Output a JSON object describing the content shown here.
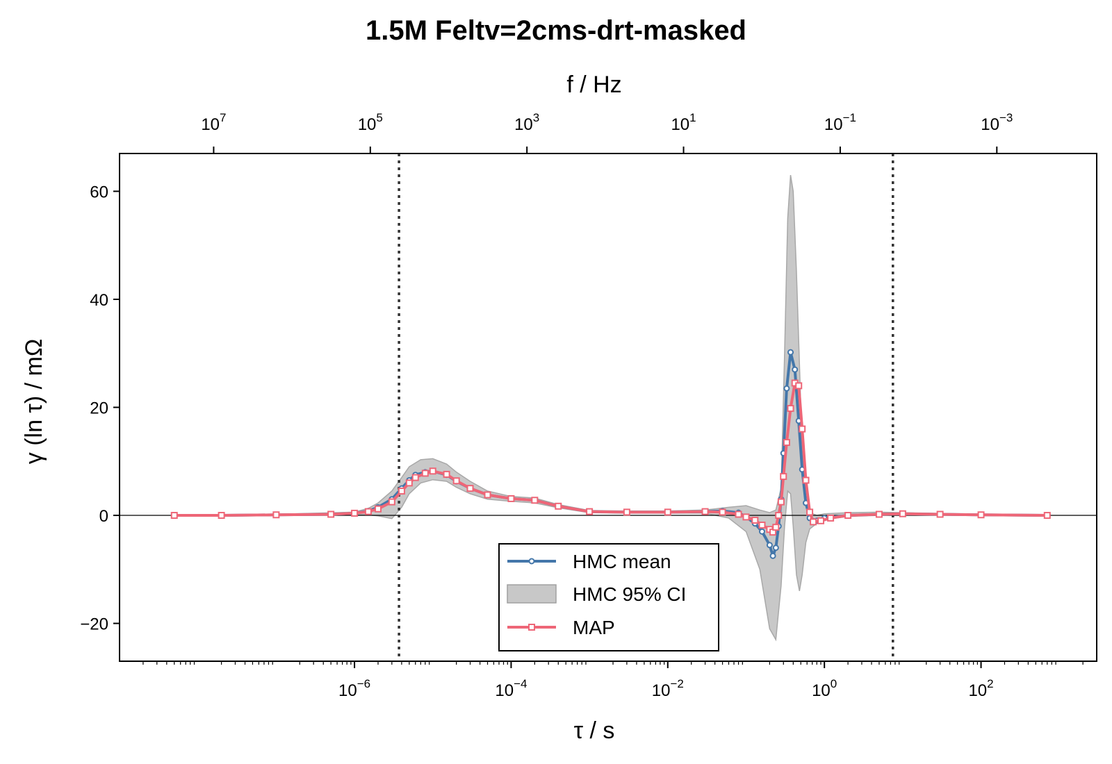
{
  "chart_data": {
    "type": "line",
    "title": "1.5M Feltv=2cms-drt-masked",
    "xlabel": "τ / s",
    "ylabel": "γ (ln τ) / mΩ",
    "top_xlabel": "f / Hz",
    "x_scale": "log",
    "xlim": [
      1e-09,
      3000
    ],
    "ylim": [
      -27,
      67
    ],
    "yticks": [
      -20,
      0,
      20,
      40,
      60
    ],
    "xticks": [
      1e-06,
      0.0001,
      0.01,
      1,
      100
    ],
    "xtick_labels": [
      {
        "base": "10",
        "exp": "−6"
      },
      {
        "base": "10",
        "exp": "−4"
      },
      {
        "base": "10",
        "exp": "−2"
      },
      {
        "base": "10",
        "exp": "0"
      },
      {
        "base": "10",
        "exp": "2"
      }
    ],
    "top_xticks_freq": [
      10000000.0,
      100000.0,
      1000.0,
      10,
      0.1,
      0.001
    ],
    "top_xtick_labels": [
      {
        "base": "10",
        "exp": "7"
      },
      {
        "base": "10",
        "exp": "5"
      },
      {
        "base": "10",
        "exp": "3"
      },
      {
        "base": "10",
        "exp": "1"
      },
      {
        "base": "10",
        "exp": "−1"
      },
      {
        "base": "10",
        "exp": "−3"
      }
    ],
    "vlines": [
      3.7e-06,
      7.5
    ],
    "grid": false,
    "legend_position": "lower-center",
    "series": [
      {
        "name": "HMC mean",
        "color": "#4477aa",
        "marker": "circle",
        "points": [
          [
            5e-09,
            0
          ],
          [
            2e-08,
            0
          ],
          [
            1e-07,
            0.1
          ],
          [
            5e-07,
            0.2
          ],
          [
            1e-06,
            0.4
          ],
          [
            1.5e-06,
            0.8
          ],
          [
            2e-06,
            1.5
          ],
          [
            3e-06,
            3
          ],
          [
            4e-06,
            5
          ],
          [
            5e-06,
            6.5
          ],
          [
            6e-06,
            7.5
          ],
          [
            8e-06,
            8
          ],
          [
            1e-05,
            8.2
          ],
          [
            1.5e-05,
            7.5
          ],
          [
            2e-05,
            6.3
          ],
          [
            3e-05,
            5
          ],
          [
            5e-05,
            3.8
          ],
          [
            0.0001,
            3.1
          ],
          [
            0.0002,
            2.8
          ],
          [
            0.0004,
            1.7
          ],
          [
            0.001,
            0.7
          ],
          [
            0.003,
            0.6
          ],
          [
            0.01,
            0.6
          ],
          [
            0.03,
            0.7
          ],
          [
            0.05,
            0.8
          ],
          [
            0.08,
            0.5
          ],
          [
            0.1,
            -0.3
          ],
          [
            0.13,
            -1.5
          ],
          [
            0.16,
            -3
          ],
          [
            0.2,
            -5.5
          ],
          [
            0.22,
            -7.5
          ],
          [
            0.24,
            -6
          ],
          [
            0.26,
            -2
          ],
          [
            0.28,
            3
          ],
          [
            0.3,
            11.5
          ],
          [
            0.33,
            23.5
          ],
          [
            0.37,
            30.2
          ],
          [
            0.42,
            27
          ],
          [
            0.47,
            17.5
          ],
          [
            0.52,
            8.5
          ],
          [
            0.58,
            2.3
          ],
          [
            0.65,
            -0.5
          ],
          [
            0.8,
            -1
          ],
          [
            1,
            -0.5
          ],
          [
            2,
            0
          ],
          [
            5,
            0.2
          ],
          [
            10,
            0.3
          ],
          [
            30,
            0.2
          ],
          [
            100,
            0.1
          ],
          [
            700,
            0
          ]
        ]
      },
      {
        "name": "MAP",
        "color": "#ee6677",
        "marker": "square",
        "points": [
          [
            5e-09,
            0
          ],
          [
            2e-08,
            0
          ],
          [
            1e-07,
            0.1
          ],
          [
            5e-07,
            0.2
          ],
          [
            1e-06,
            0.4
          ],
          [
            1.5e-06,
            0.7
          ],
          [
            2e-06,
            1.2
          ],
          [
            3e-06,
            2.5
          ],
          [
            4e-06,
            4.5
          ],
          [
            5e-06,
            6
          ],
          [
            6e-06,
            7
          ],
          [
            8e-06,
            7.8
          ],
          [
            1e-05,
            8.2
          ],
          [
            1.5e-05,
            7.6
          ],
          [
            2e-05,
            6.4
          ],
          [
            3e-05,
            5
          ],
          [
            5e-05,
            3.8
          ],
          [
            0.0001,
            3.1
          ],
          [
            0.0002,
            2.8
          ],
          [
            0.0004,
            1.7
          ],
          [
            0.001,
            0.7
          ],
          [
            0.003,
            0.6
          ],
          [
            0.01,
            0.6
          ],
          [
            0.03,
            0.7
          ],
          [
            0.05,
            0.6
          ],
          [
            0.08,
            0.2
          ],
          [
            0.1,
            -0.3
          ],
          [
            0.13,
            -0.9
          ],
          [
            0.16,
            -1.8
          ],
          [
            0.2,
            -2.6
          ],
          [
            0.22,
            -3.1
          ],
          [
            0.24,
            -2.2
          ],
          [
            0.26,
            0
          ],
          [
            0.28,
            2.5
          ],
          [
            0.3,
            7.2
          ],
          [
            0.33,
            13.5
          ],
          [
            0.37,
            19.8
          ],
          [
            0.42,
            24.5
          ],
          [
            0.47,
            24
          ],
          [
            0.52,
            16
          ],
          [
            0.58,
            6.5
          ],
          [
            0.65,
            0.6
          ],
          [
            0.72,
            -1.2
          ],
          [
            0.9,
            -1
          ],
          [
            1.2,
            -0.5
          ],
          [
            2,
            0
          ],
          [
            5,
            0.2
          ],
          [
            10,
            0.3
          ],
          [
            30,
            0.2
          ],
          [
            100,
            0.1
          ],
          [
            700,
            0
          ]
        ]
      }
    ],
    "ci_band": {
      "name": "HMC 95% CI",
      "color": "#c8c8c8",
      "x": [
        5e-09,
        1e-07,
        1e-06,
        1.5e-06,
        2e-06,
        3e-06,
        4e-06,
        5e-06,
        7e-06,
        1e-05,
        1.5e-05,
        2e-05,
        3e-05,
        5e-05,
        0.0001,
        0.0002,
        0.0004,
        0.001,
        0.003,
        0.01,
        0.03,
        0.06,
        0.1,
        0.15,
        0.2,
        0.24,
        0.28,
        0.31,
        0.34,
        0.37,
        0.4,
        0.44,
        0.48,
        0.52,
        0.58,
        0.65,
        0.8,
        1,
        2,
        5,
        10,
        100,
        700
      ],
      "upper": [
        0,
        0.2,
        0.6,
        1.3,
        2.3,
        4.5,
        7,
        9,
        10.3,
        10.5,
        9.5,
        8,
        6.3,
        4.5,
        3.5,
        3.2,
        2,
        0.9,
        0.8,
        0.8,
        1,
        1.5,
        1.8,
        1,
        0.5,
        1,
        5,
        30,
        55,
        63,
        60,
        45,
        28,
        12,
        3,
        0.5,
        0,
        0.3,
        0.5,
        0.6,
        0.5,
        0.2,
        0
      ],
      "lower": [
        0,
        0,
        0.2,
        0.1,
        -0.1,
        -0.6,
        1.5,
        4,
        6,
        6.6,
        6.3,
        5.2,
        4,
        3,
        2.6,
        2.3,
        1.4,
        0.5,
        0.4,
        0.4,
        0.4,
        -0.5,
        -3,
        -10,
        -21,
        -23,
        -13,
        -2,
        4.5,
        4,
        -2,
        -11,
        -14,
        -11,
        -5,
        -2.5,
        -1.5,
        -0.8,
        -0.2,
        0,
        0.1,
        0,
        0
      ]
    }
  }
}
